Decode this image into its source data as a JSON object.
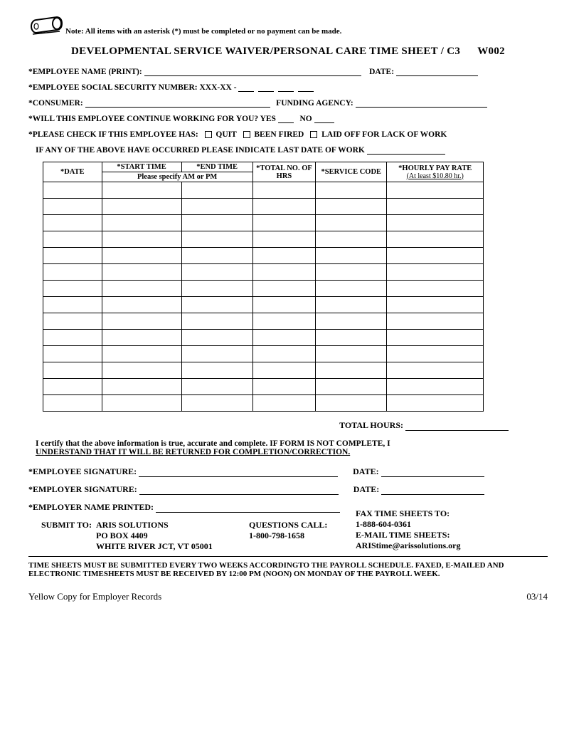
{
  "note": "Note:  All items with an asterisk (*) must be completed or no payment can be made.",
  "title": "DEVELOPMENTAL SERVICE WAIVER/PERSONAL CARE TIME SHEET / C3",
  "title_code": "W002",
  "fields": {
    "employee_name": "*EMPLOYEE NAME (PRINT):",
    "date": "DATE:",
    "ssn": "*EMPLOYEE SOCIAL SECURITY NUMBER: XXX-XX -",
    "consumer": "*CONSUMER:",
    "funding_agency": "FUNDING AGENCY:",
    "will_continue": "*WILL THIS EMPLOYEE CONTINUE WORKING FOR YOU?  YES",
    "no": "NO",
    "please_check": "*PLEASE CHECK IF THIS EMPLOYEE HAS:",
    "quit": "QUIT",
    "been_fired": "BEEN FIRED",
    "laid_off": "LAID OFF FOR LACK OF WORK",
    "last_date": "IF ANY OF THE ABOVE HAVE OCCURRED PLEASE INDICATE LAST DATE OF WORK"
  },
  "table": {
    "headers": {
      "date": "*DATE",
      "start": "*START TIME",
      "end": "*END TIME",
      "ampm": "Please specify AM or PM",
      "total_hrs": "*TOTAL NO. OF HRS",
      "service_code": "*SERVICE CODE",
      "hourly_rate": "*HOURLY PAY RATE",
      "rate_note": "(At least $10.80 hr.)"
    },
    "rows": 14,
    "cols": 6
  },
  "total_hours_label": "TOTAL HOURS:",
  "cert_line1": "I certify that the above information is true, accurate and complete.  IF FORM IS NOT COMPLETE, I",
  "cert_line2": "UNDERSTAND THAT IT WILL BE RETURNED FOR COMPLETION/CORRECTION.",
  "signatures": {
    "employee_sig": "*EMPLOYEE  SIGNATURE:",
    "employer_sig": "*EMPLOYER  SIGNATURE:",
    "employer_name": "*EMPLOYER  NAME PRINTED:",
    "date": "DATE:"
  },
  "submit": {
    "submit_to": "SUBMIT TO:",
    "org": "ARIS SOLUTIONS",
    "po": "PO BOX 4409",
    "city": "WHITE RIVER JCT, VT 05001",
    "questions": "QUESTIONS CALL:",
    "phone": "1-800-798-1658",
    "fax_label": "FAX TIME SHEETS TO:",
    "fax": "1-888-604-0361",
    "email_label": "E-MAIL TIME SHEETS:",
    "email": "ARIStime@arissolutions.org"
  },
  "footer_note": "TIME SHEETS MUST BE SUBMITTED EVERY TWO WEEKS ACCORDINGTO THE PAYROLL SCHEDULE.  FAXED, E-MAILED AND ELECTRONIC TIMESHEETS MUST BE RECEIVED BY 12:00 PM (NOON) ON MONDAY OF THE PAYROLL WEEK.",
  "bottom_left": "Yellow Copy for Employer Records",
  "bottom_right": "03/14"
}
